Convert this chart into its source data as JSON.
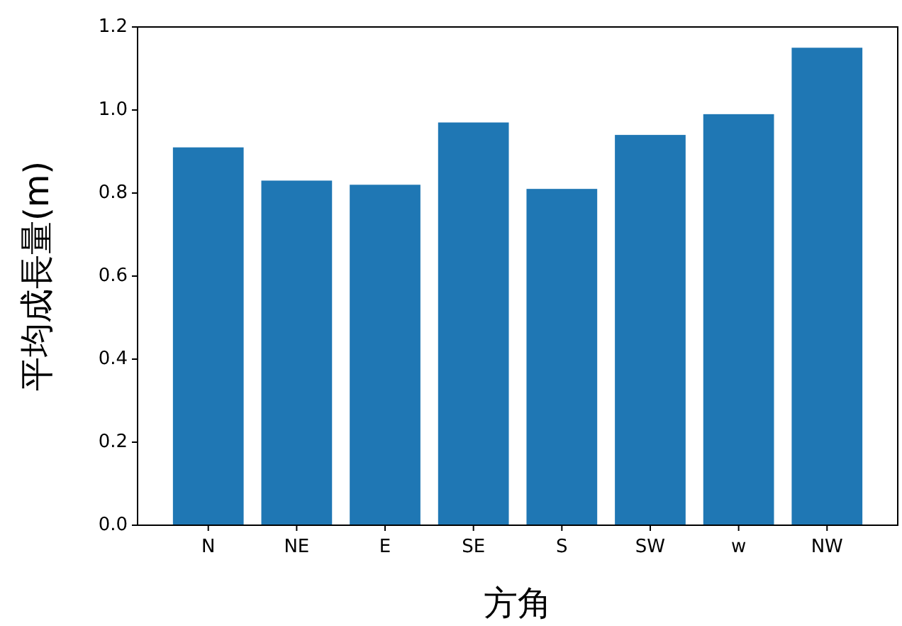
{
  "chart_data": {
    "type": "bar",
    "xlabel": "方角",
    "ylabel": "平均成長量(m)",
    "categories": [
      "N",
      "NE",
      "E",
      "SE",
      "S",
      "SW",
      "w",
      "NW"
    ],
    "values": [
      0.91,
      0.83,
      0.82,
      0.97,
      0.81,
      0.94,
      0.99,
      1.15
    ],
    "color": "#1f77b4",
    "ylim": [
      0,
      1.2
    ],
    "yticks": [
      {
        "value": 0,
        "label": "0.0"
      },
      {
        "value": 0.2,
        "label": "0.2"
      },
      {
        "value": 0.4,
        "label": "0.4"
      },
      {
        "value": 0.6,
        "label": "0.6"
      },
      {
        "value": 0.8,
        "label": "0.8"
      },
      {
        "value": 1,
        "label": "1.0"
      },
      {
        "value": 1.2,
        "label": "1.2"
      }
    ],
    "grid": false
  }
}
